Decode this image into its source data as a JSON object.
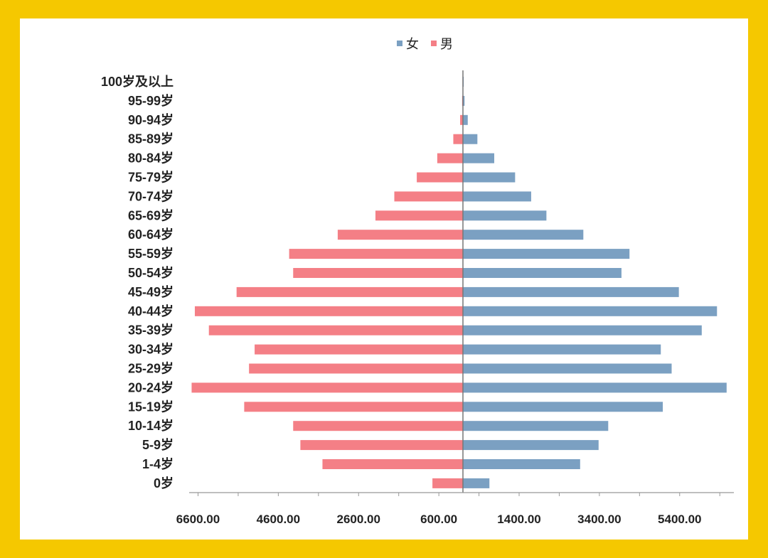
{
  "chart_data": {
    "type": "bar",
    "orientation": "horizontal",
    "subtype": "population-pyramid",
    "categories": [
      "100岁及以上",
      "95-99岁",
      "90-94岁",
      "85-89岁",
      "80-84岁",
      "75-79岁",
      "70-74岁",
      "65-69岁",
      "60-64岁",
      "55-59岁",
      "50-54岁",
      "45-49岁",
      "40-44岁",
      "35-39岁",
      "30-34岁",
      "25-29岁",
      "20-24岁",
      "15-19岁",
      "10-14岁",
      "5-9岁",
      "1-4岁",
      "0岁"
    ],
    "series": [
      {
        "name": "女",
        "color": "#7ba0c2",
        "side": "right",
        "values": [
          20,
          40,
          120,
          360,
          780,
          1300,
          1700,
          2080,
          3000,
          4150,
          3950,
          5380,
          6330,
          5950,
          4930,
          5200,
          6570,
          4980,
          3620,
          3380,
          2920,
          660
        ]
      },
      {
        "name": "男",
        "color": "#f47f86",
        "side": "left",
        "values": [
          10,
          20,
          70,
          240,
          640,
          1150,
          1710,
          2180,
          3120,
          4330,
          4230,
          5640,
          6680,
          6330,
          5190,
          5330,
          6760,
          5450,
          4230,
          4050,
          3500,
          760
        ]
      }
    ],
    "x_ticks": [
      "6600.00",
      "4600.00",
      "2600.00",
      "600.00",
      "1400.00",
      "3400.00",
      "5400.00"
    ],
    "legend": "top-center",
    "grid": false
  }
}
